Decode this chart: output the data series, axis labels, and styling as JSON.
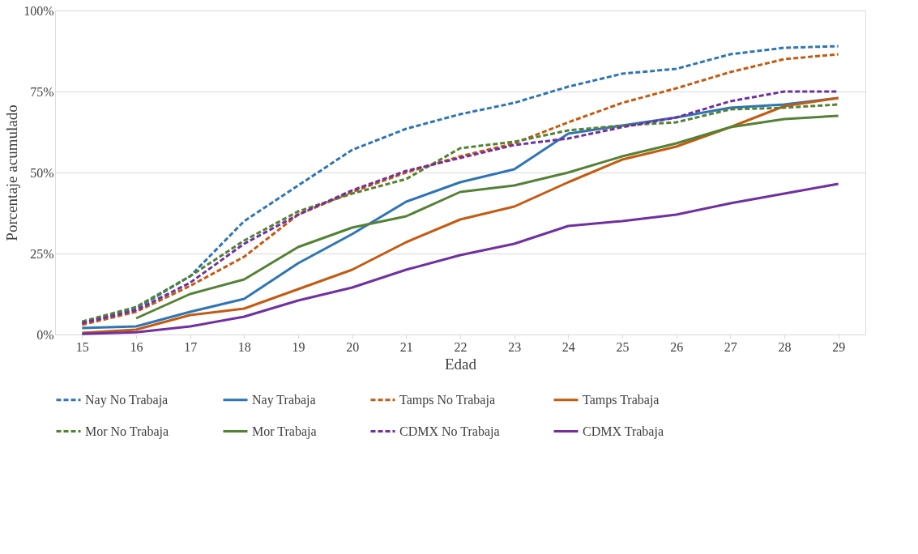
{
  "chart_data": {
    "type": "line",
    "xlabel": "Edad",
    "ylabel": "Porcentaje acumulado",
    "categories": [
      "15",
      "16",
      "17",
      "18",
      "19",
      "20",
      "21",
      "22",
      "23",
      "24",
      "25",
      "26",
      "27",
      "28",
      "29"
    ],
    "ylim": [
      0,
      100
    ],
    "yticks": [
      {
        "value": 0,
        "label": "0%"
      },
      {
        "value": 25,
        "label": "25%"
      },
      {
        "value": 50,
        "label": "50%"
      },
      {
        "value": 75,
        "label": "75%"
      },
      {
        "value": 100,
        "label": "100%"
      }
    ],
    "grid": "y",
    "legend": "bottom",
    "marker": "none",
    "series": [
      {
        "name": "Nay No Trabaja",
        "color": "#2e75b6",
        "line_style": "dashed",
        "values": [
          3.5,
          8,
          18,
          35,
          46,
          57,
          63.5,
          68,
          71.5,
          76.5,
          80.5,
          82,
          86.5,
          88.5,
          89
        ]
      },
      {
        "name": "Nay Trabaja",
        "color": "#2e75b6",
        "line_style": "solid",
        "values": [
          2,
          2.5,
          7,
          11,
          22,
          31,
          41,
          47,
          51,
          62,
          64.5,
          67,
          70,
          71,
          73
        ]
      },
      {
        "name": "Tamps No Trabaja",
        "color": "#c55a11",
        "line_style": "dashed",
        "values": [
          3,
          7,
          15,
          24,
          37,
          44,
          50,
          55,
          59,
          65.5,
          71.5,
          76,
          81,
          85,
          86.5
        ]
      },
      {
        "name": "Tamps Trabaja",
        "color": "#c55a11",
        "line_style": "solid",
        "values": [
          0.5,
          1.5,
          6,
          8,
          14,
          20,
          28.5,
          35.5,
          39.5,
          47,
          54,
          58,
          64,
          70.5,
          73
        ]
      },
      {
        "name": "Mor No Trabaja",
        "color": "#548235",
        "line_style": "dashed",
        "values": [
          4,
          8.5,
          18,
          29,
          38,
          43.5,
          48,
          57.5,
          59.5,
          63,
          64.5,
          65.5,
          69.5,
          70,
          71
        ]
      },
      {
        "name": "Mor Trabaja",
        "color": "#548235",
        "line_style": "solid",
        "values": [
          null,
          5,
          12.5,
          17,
          27,
          33,
          36.5,
          44,
          46,
          50,
          55,
          59,
          64,
          66.5,
          67.5
        ]
      },
      {
        "name": "CDMX No Trabaja",
        "color": "#7030a0",
        "line_style": "dashed",
        "values": [
          3.5,
          7.5,
          16,
          28,
          37,
          44.5,
          50.5,
          54.5,
          58.5,
          60.5,
          64,
          67,
          72,
          75,
          75
        ]
      },
      {
        "name": "CDMX Trabaja",
        "color": "#7030a0",
        "line_style": "solid",
        "values": [
          0.2,
          0.7,
          2.5,
          5.5,
          10.5,
          14.5,
          20,
          24.5,
          28,
          33.5,
          35,
          37,
          40.5,
          43.5,
          46.5
        ]
      }
    ]
  }
}
